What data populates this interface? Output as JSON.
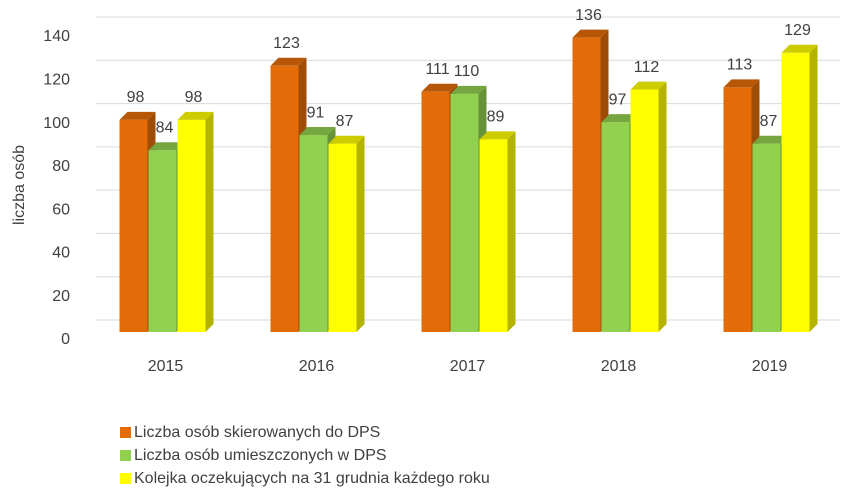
{
  "chart_data": {
    "type": "bar",
    "ylabel": "liczba osób",
    "categories": [
      "2015",
      "2016",
      "2017",
      "2018",
      "2019"
    ],
    "series": [
      {
        "name": "Liczba osób skierowanych do DPS",
        "color": "#e36c09",
        "values": [
          98,
          123,
          111,
          136,
          113
        ]
      },
      {
        "name": "Liczba osób umieszczonych w DPS",
        "color": "#92d050",
        "values": [
          84,
          91,
          110,
          97,
          87
        ]
      },
      {
        "name": "Kolejka oczekujących na 31 grudnia każdego roku",
        "color": "#ffff00",
        "values": [
          98,
          87,
          89,
          112,
          129
        ]
      }
    ],
    "ylim": [
      0,
      140
    ],
    "yticks": [
      0,
      20,
      40,
      60,
      80,
      100,
      120,
      140
    ],
    "grid": true,
    "legend": "bottom"
  }
}
